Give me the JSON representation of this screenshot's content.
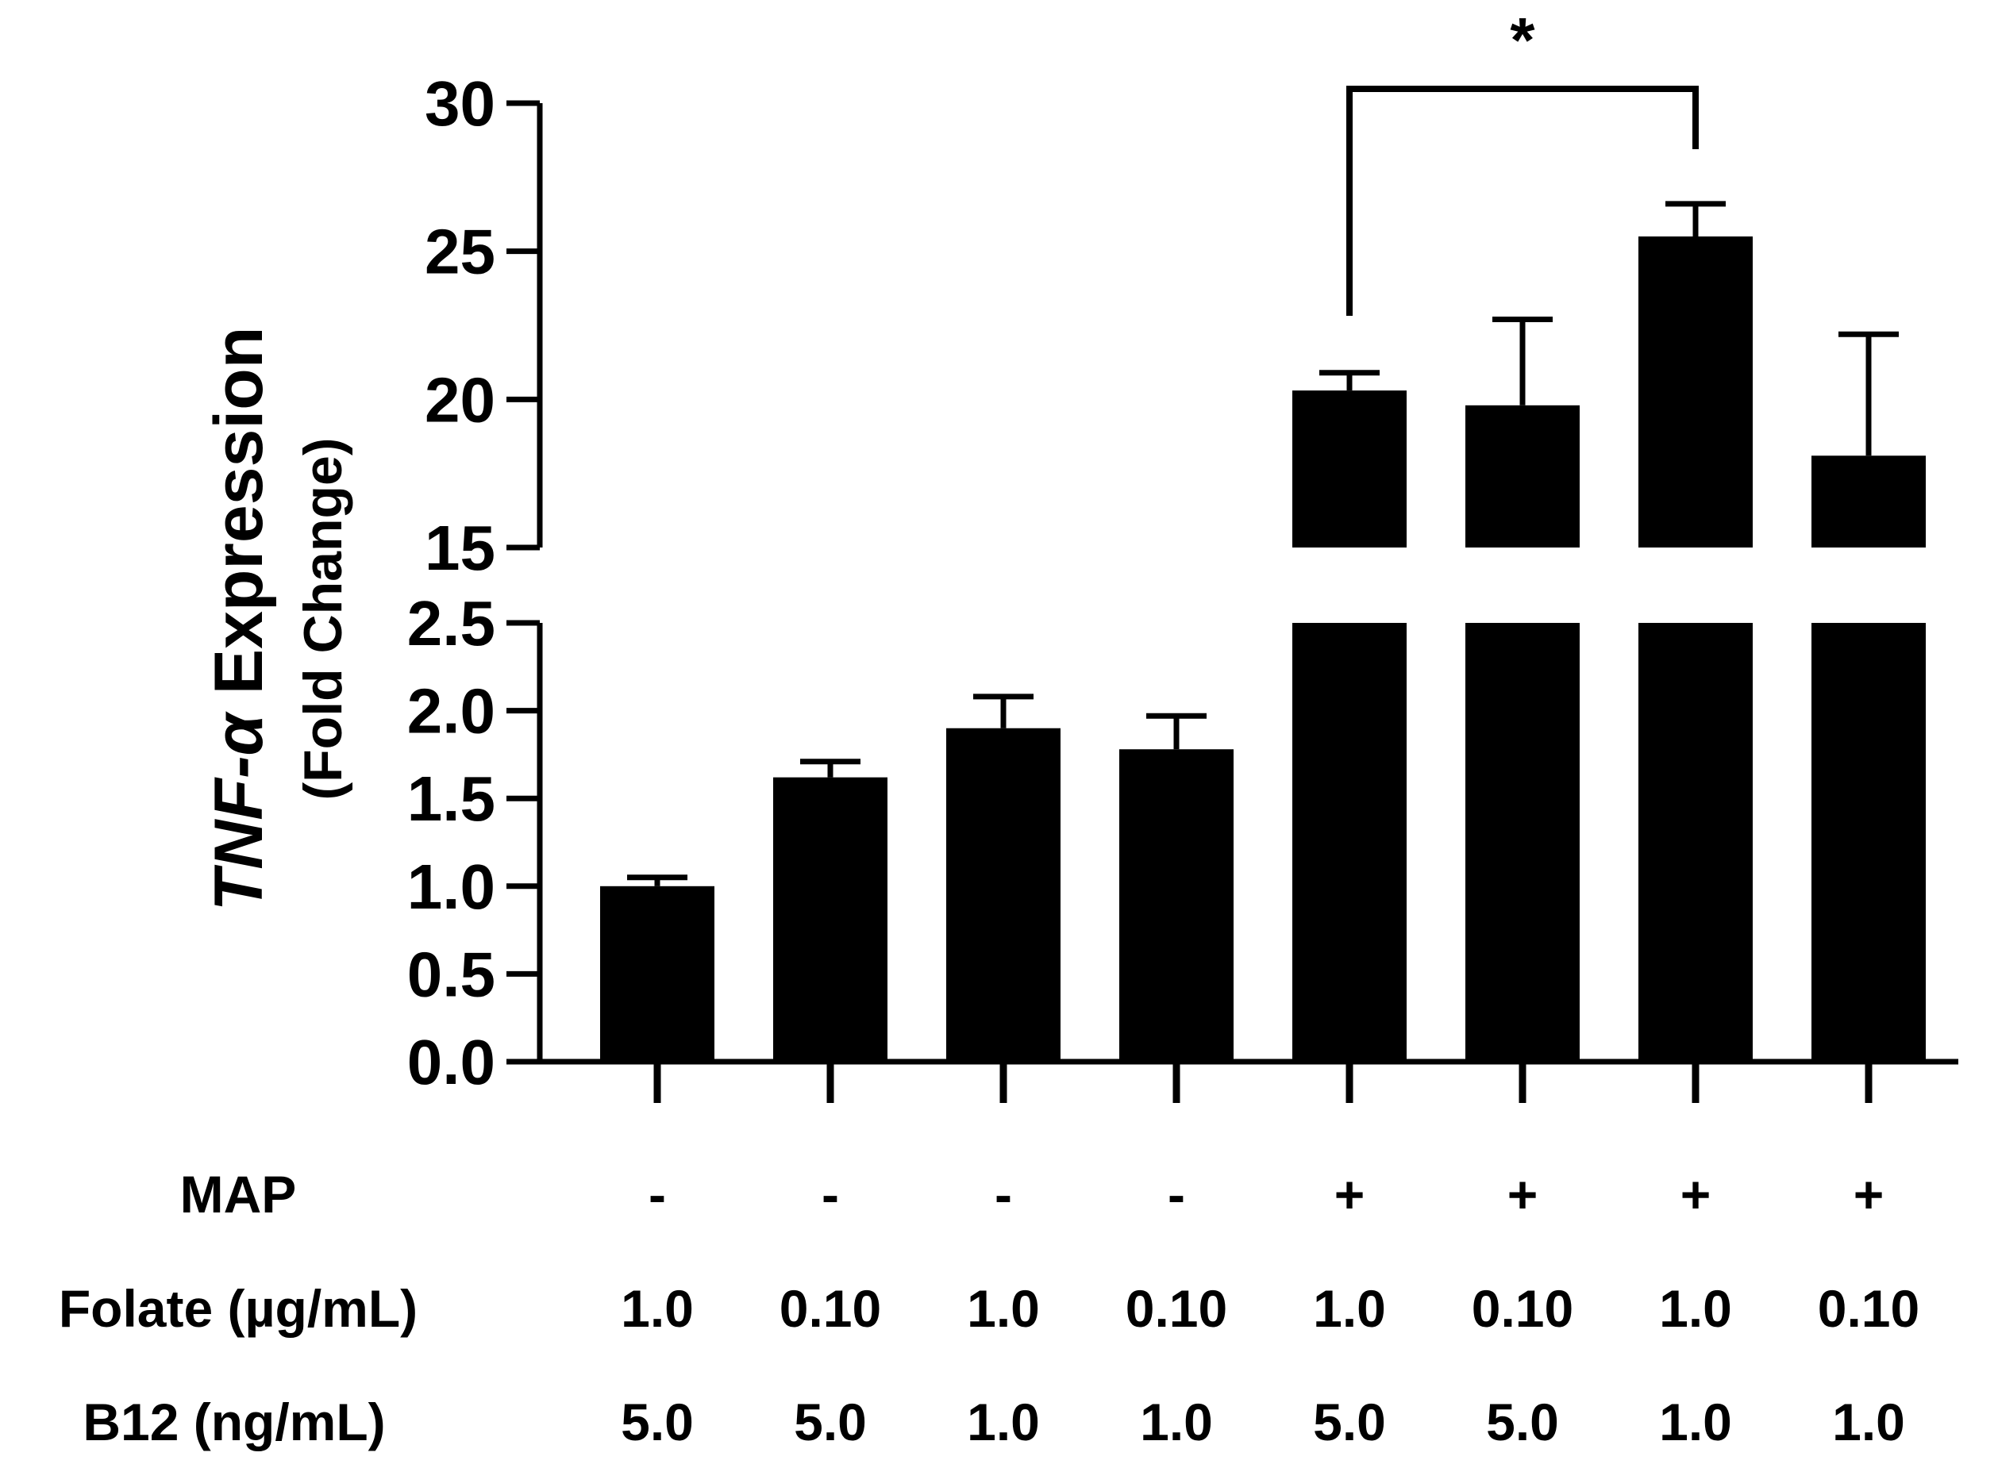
{
  "chart_data": {
    "type": "bar",
    "ylabel_line1_italic": "TNF-α",
    "ylabel_line1_rest": " Expression",
    "ylabel_line2": "(Fold Change)",
    "lower_segment": {
      "ylim": [
        0.0,
        2.5
      ],
      "ticks": [
        "0.0",
        "0.5",
        "1.0",
        "1.5",
        "2.0",
        "2.5"
      ]
    },
    "upper_segment": {
      "ylim": [
        15,
        30
      ],
      "ticks": [
        "15",
        "20",
        "25",
        "30"
      ]
    },
    "values": [
      1.0,
      1.62,
      1.9,
      1.78,
      20.3,
      19.8,
      25.5,
      18.1
    ],
    "errors": [
      0.05,
      0.09,
      0.18,
      0.19,
      0.6,
      2.9,
      1.1,
      4.1
    ],
    "groups": [
      {
        "map": "-",
        "folate": "1.0",
        "b12": "5.0"
      },
      {
        "map": "-",
        "folate": "0.10",
        "b12": "5.0"
      },
      {
        "map": "-",
        "folate": "1.0",
        "b12": "1.0"
      },
      {
        "map": "-",
        "folate": "0.10",
        "b12": "1.0"
      },
      {
        "map": "+",
        "folate": "1.0",
        "b12": "5.0"
      },
      {
        "map": "+",
        "folate": "0.10",
        "b12": "5.0"
      },
      {
        "map": "+",
        "folate": "1.0",
        "b12": "1.0"
      },
      {
        "map": "+",
        "folate": "0.10",
        "b12": "1.0"
      }
    ],
    "row_labels": {
      "map": "MAP",
      "folate": "Folate (µg/mL)",
      "b12": "B12 (ng/mL)"
    },
    "significance": {
      "from": 4,
      "to": 6,
      "label": "*"
    },
    "colors": {
      "bar": "#000000",
      "axis": "#000000",
      "background": "#ffffff"
    }
  }
}
